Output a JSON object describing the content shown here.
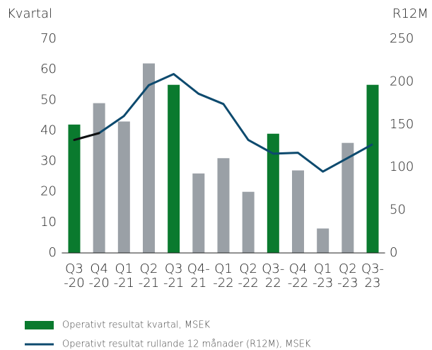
{
  "chart_data": {
    "type": "bar",
    "y_axis_label": "Kvartal",
    "y2_axis_label": "R12M",
    "categories": [
      [
        "Q3",
        "-20"
      ],
      [
        "Q4",
        "-20"
      ],
      [
        "Q1",
        "-21"
      ],
      [
        "Q2",
        "-21"
      ],
      [
        "Q3",
        "-21"
      ],
      [
        "Q4-",
        "21"
      ],
      [
        "Q1",
        "-22"
      ],
      [
        "Q2",
        "-22"
      ],
      [
        "Q3-",
        "22"
      ],
      [
        "Q4",
        "-22"
      ],
      [
        "Q1",
        "-23"
      ],
      [
        "Q2",
        "-23"
      ],
      [
        "Q3-",
        "23"
      ]
    ],
    "series": [
      {
        "name": "Operativt resultat kvartal, MSEK",
        "type": "bar",
        "color": "#0a7a2e",
        "colors": [
          "#0a7a2e",
          "#9aa0a6",
          "#9aa0a6",
          "#9aa0a6",
          "#0a7a2e",
          "#9aa0a6",
          "#9aa0a6",
          "#9aa0a6",
          "#0a7a2e",
          "#9aa0a6",
          "#9aa0a6",
          "#9aa0a6",
          "#0a7a2e"
        ],
        "values": [
          42,
          49,
          43,
          62,
          55,
          26,
          31,
          20,
          39,
          27,
          8,
          36,
          55
        ]
      },
      {
        "name": "Operativt resultat rullande 12 månader (R12M), MSEK",
        "type": "line",
        "axis": "y2",
        "color": "#0d4a6e",
        "start_color": "#111111",
        "values": [
          132,
          140,
          160,
          196,
          209,
          186,
          174,
          132,
          116,
          117,
          95,
          111,
          127
        ]
      }
    ],
    "ylim": [
      0,
      70
    ],
    "yticks": [
      0,
      10,
      20,
      30,
      40,
      50,
      60,
      70
    ],
    "y2lim": [
      0,
      250
    ],
    "y2ticks": [
      0,
      50,
      100,
      150,
      200,
      250
    ]
  }
}
